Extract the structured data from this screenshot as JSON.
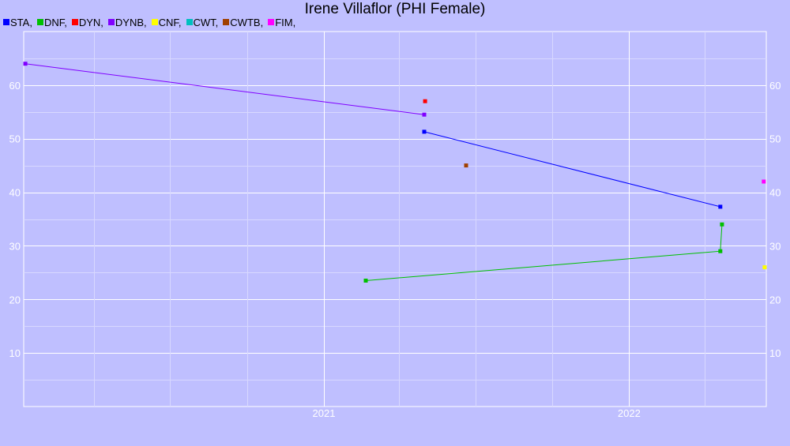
{
  "chart_data": {
    "type": "line",
    "title": "Irene Villaflor (PHI Female)",
    "xlabel": "",
    "ylabel": "",
    "x_axis_type": "date",
    "xlim": [
      "2020-01-08",
      "2022-06-14"
    ],
    "ylim": [
      0,
      70
    ],
    "x_ticks": [
      "2021",
      "2022"
    ],
    "y_ticks": [
      "10",
      "20",
      "30",
      "40",
      "50",
      "60"
    ],
    "grid": true,
    "legend_position": "top-left",
    "series": [
      {
        "name": "STA",
        "legend_label": "STA,",
        "color": "#0000ff",
        "x": [
          "2021-05-01",
          "2022-04-20"
        ],
        "y": [
          51.3,
          37.3
        ]
      },
      {
        "name": "DNF",
        "legend_label": "DNF,",
        "color": "#00c000",
        "x": [
          "2021-02-20",
          "2022-04-20",
          "2022-04-22"
        ],
        "y": [
          23.5,
          29.0,
          34.0
        ]
      },
      {
        "name": "DYN",
        "legend_label": "DYN,",
        "color": "#ff0000",
        "x": [
          "2021-05-02"
        ],
        "y": [
          57.0
        ]
      },
      {
        "name": "DYNB",
        "legend_label": "DYNB,",
        "color": "#8000ff",
        "x": [
          "2020-01-10",
          "2021-05-01"
        ],
        "y": [
          64.0,
          54.5
        ]
      },
      {
        "name": "CNF",
        "legend_label": "CNF,",
        "color": "#ffff00",
        "x": [
          "2022-06-12"
        ],
        "y": [
          26.0
        ]
      },
      {
        "name": "CWT",
        "legend_label": "CWT,",
        "color": "#00c0c0",
        "x": [],
        "y": []
      },
      {
        "name": "CWTB",
        "legend_label": "CWTB,",
        "color": "#a04000",
        "x": [
          "2021-06-20"
        ],
        "y": [
          45.0
        ]
      },
      {
        "name": "FIM",
        "legend_label": "FIM,",
        "color": "#ff00ff",
        "x": [
          "2022-06-11"
        ],
        "y": [
          42.0
        ]
      }
    ]
  }
}
